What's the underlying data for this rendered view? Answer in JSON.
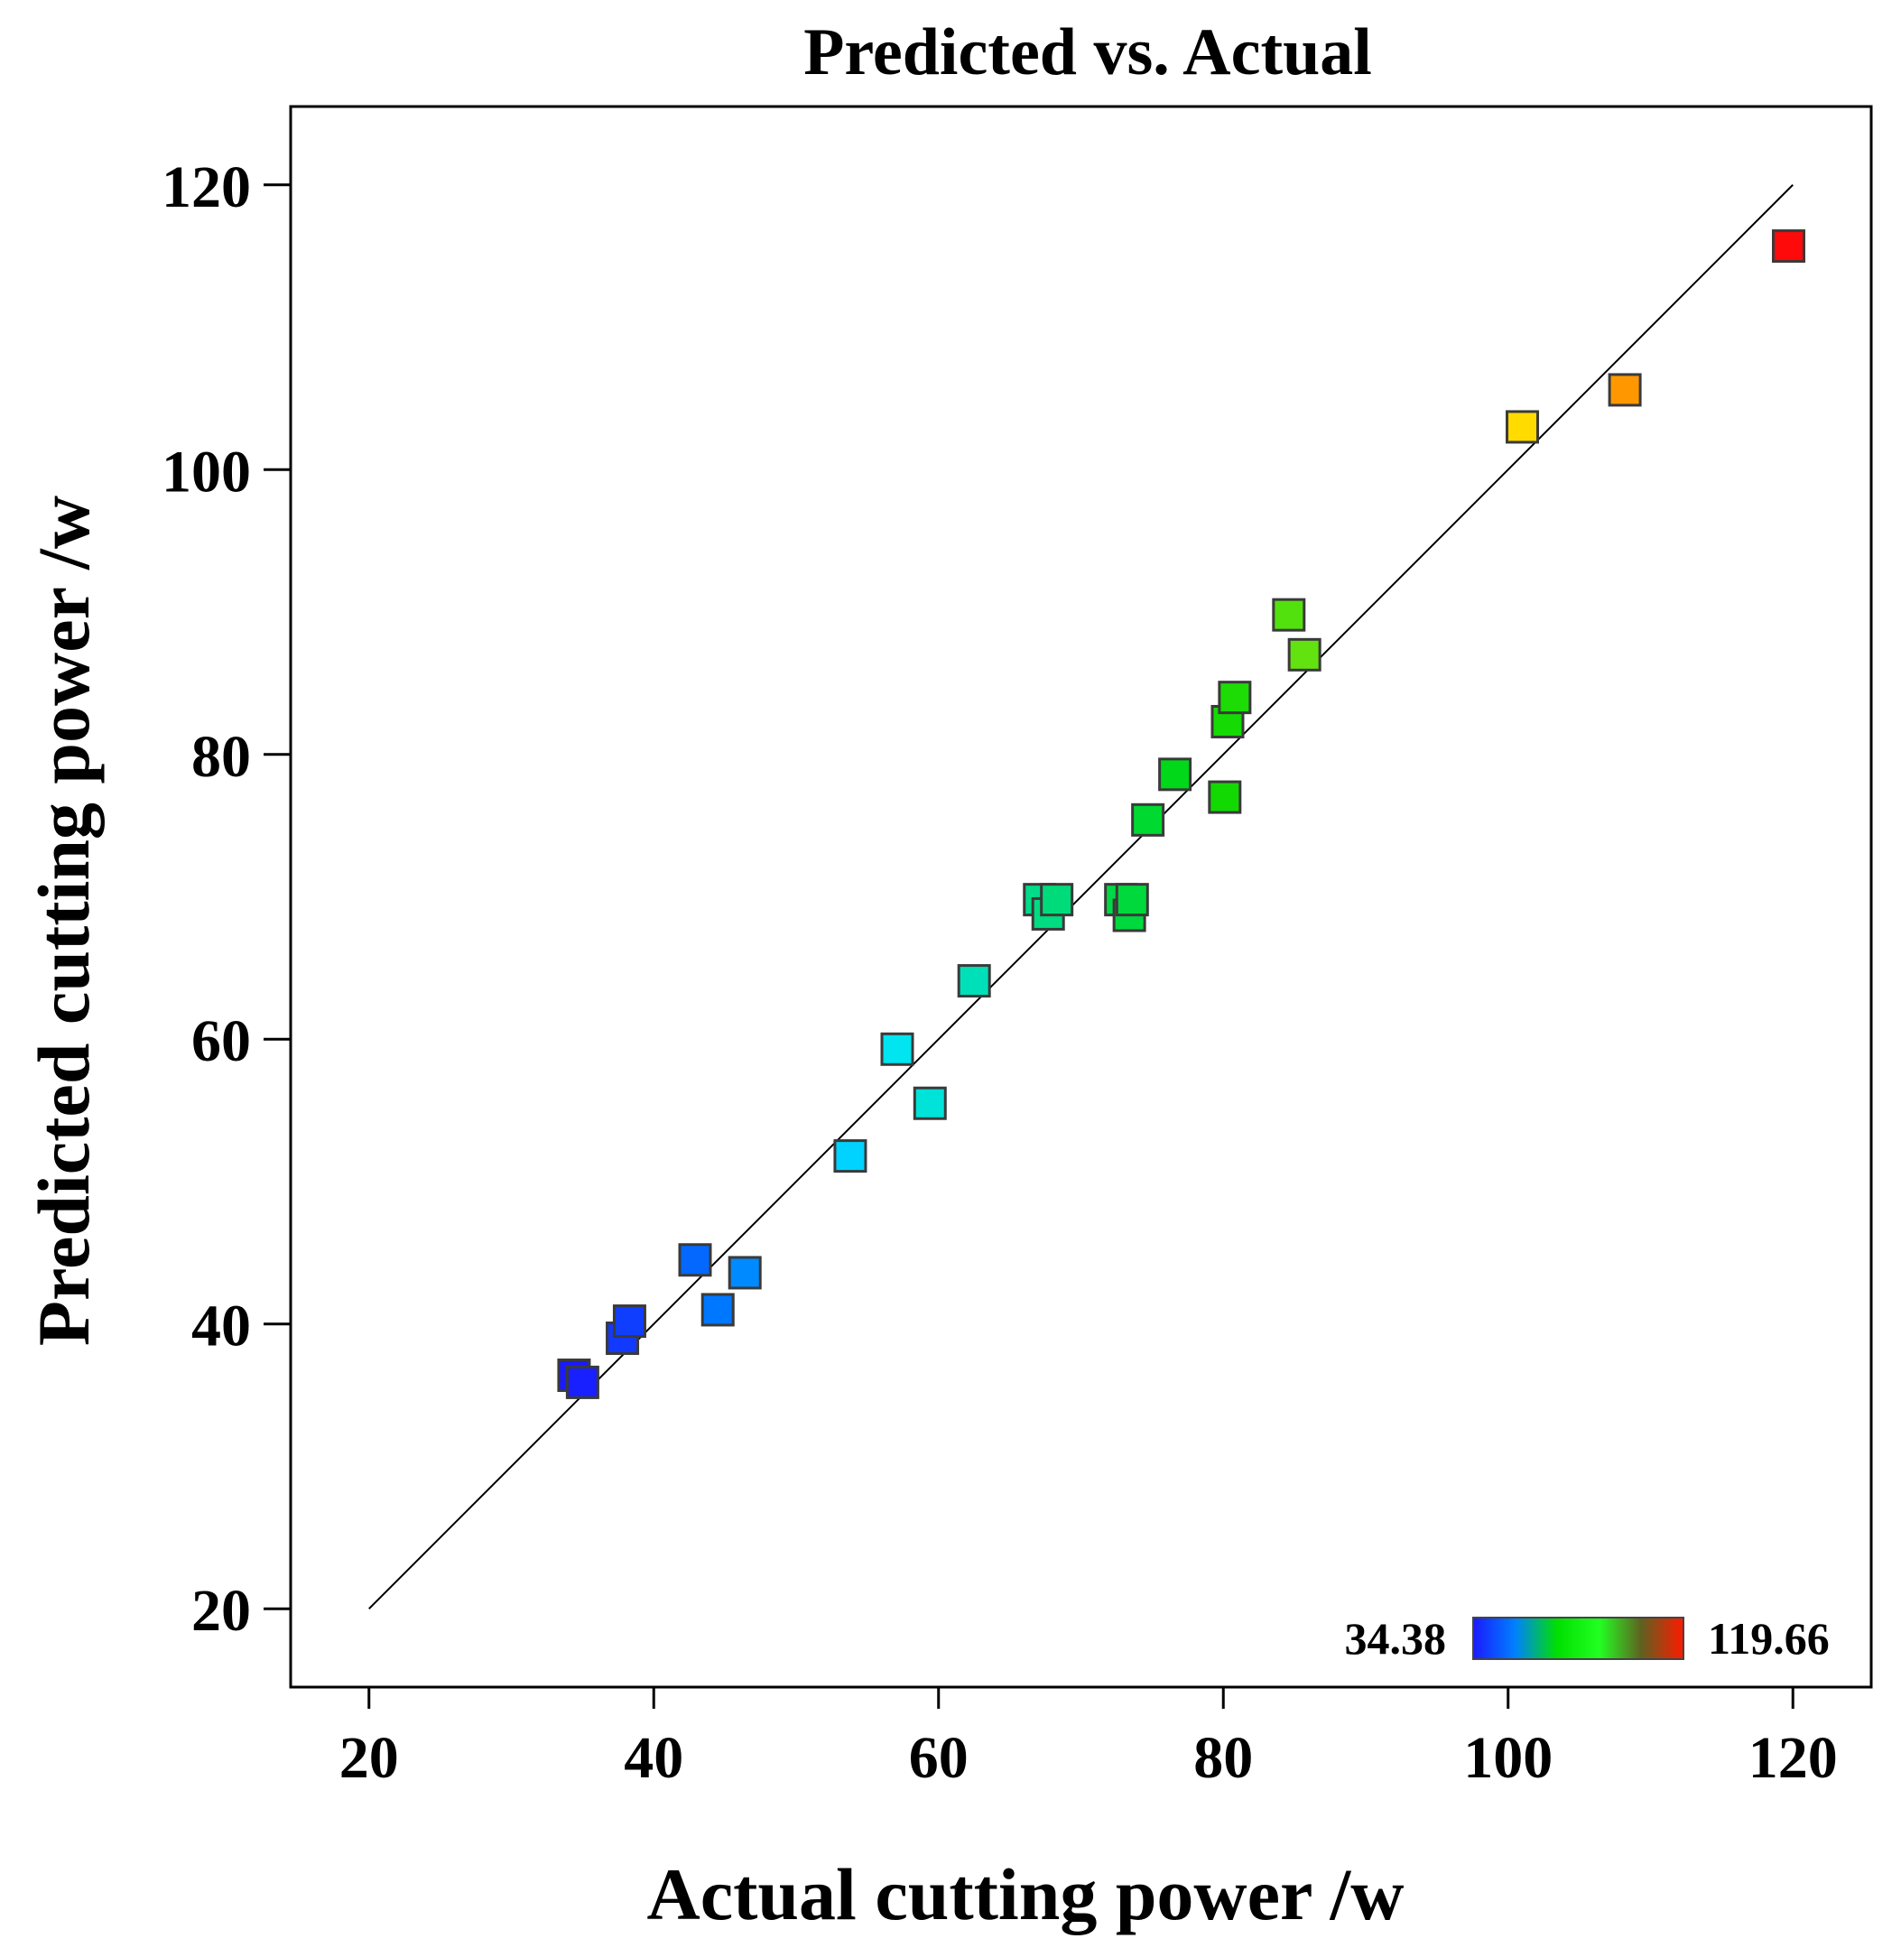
{
  "chart_data": {
    "type": "scatter",
    "title": "Predicted vs. Actual",
    "xlabel": "Actual cutting power /w",
    "ylabel": "Predicted cutting power /w",
    "xlim": [
      14.5,
      125.5
    ],
    "ylim": [
      14.5,
      125.5
    ],
    "xticks": [
      20,
      40,
      60,
      80,
      100,
      120
    ],
    "yticks": [
      20,
      40,
      60,
      80,
      100,
      120
    ],
    "xtick_labels": [
      "20",
      "40",
      "60",
      "80",
      "100",
      "120"
    ],
    "ytick_labels": [
      "20",
      "40",
      "60",
      "80",
      "100",
      "120"
    ],
    "reference_line": {
      "from": [
        20,
        20
      ],
      "to": [
        120,
        120
      ]
    },
    "colorbar": {
      "min_label": "34.38",
      "max_label": "119.66",
      "min": 34.38,
      "max": 119.66,
      "colors": [
        "#1a1aff",
        "#0080ff",
        "#00e000",
        "#22ff22",
        "#606020",
        "#ff1a00"
      ]
    },
    "points": [
      {
        "x": 34.4,
        "y": 36.4
      },
      {
        "x": 35.0,
        "y": 35.9
      },
      {
        "x": 37.8,
        "y": 39.0
      },
      {
        "x": 38.3,
        "y": 40.2
      },
      {
        "x": 42.9,
        "y": 44.5
      },
      {
        "x": 44.5,
        "y": 41.0
      },
      {
        "x": 46.4,
        "y": 43.6
      },
      {
        "x": 53.8,
        "y": 51.8
      },
      {
        "x": 57.1,
        "y": 59.3
      },
      {
        "x": 59.4,
        "y": 55.5
      },
      {
        "x": 62.5,
        "y": 64.1
      },
      {
        "x": 67.1,
        "y": 69.8
      },
      {
        "x": 67.7,
        "y": 68.8
      },
      {
        "x": 68.3,
        "y": 69.8
      },
      {
        "x": 72.8,
        "y": 69.8
      },
      {
        "x": 73.4,
        "y": 68.7
      },
      {
        "x": 73.6,
        "y": 69.8
      },
      {
        "x": 74.7,
        "y": 75.4
      },
      {
        "x": 76.6,
        "y": 78.6
      },
      {
        "x": 80.1,
        "y": 77.0
      },
      {
        "x": 80.3,
        "y": 82.3
      },
      {
        "x": 80.8,
        "y": 84.0
      },
      {
        "x": 84.6,
        "y": 89.8
      },
      {
        "x": 85.7,
        "y": 87.0
      },
      {
        "x": 101.0,
        "y": 103.0
      },
      {
        "x": 108.2,
        "y": 105.6
      },
      {
        "x": 119.7,
        "y": 115.7
      }
    ]
  }
}
